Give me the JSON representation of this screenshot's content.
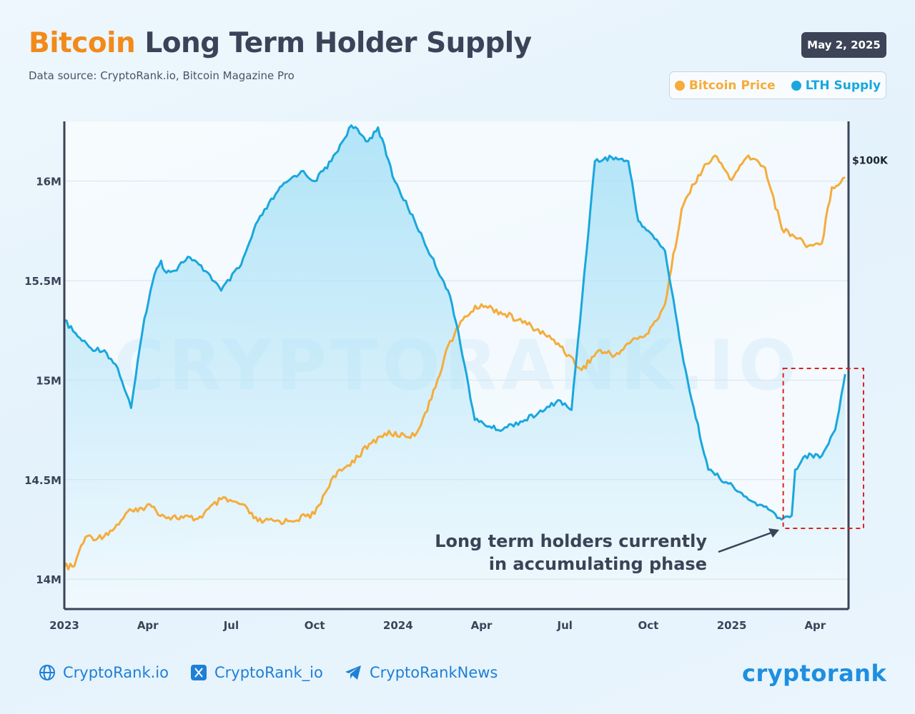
{
  "header": {
    "title_accent": "Bitcoin",
    "title_rest": " Long Term Holder Supply",
    "subtitle": "Data source: CryptoRank.io, Bitcoin Magazine Pro",
    "date": "May 2, 2025"
  },
  "legend": {
    "price_label": "Bitcoin Price",
    "lth_label": "LTH Supply"
  },
  "colors": {
    "price": "#f5ac3a",
    "lth": "#1aa7dd",
    "lth_fill": "#aee3f7",
    "annotation": "#3b4358",
    "highlight": "#e02020",
    "axis": "#3b4358",
    "grid": "#d9e3ec",
    "watermark": "#d8ecf8"
  },
  "chart_data": {
    "type": "line",
    "title": "Bitcoin Long Term Holder Supply",
    "x_ticks": [
      "2023",
      "Apr",
      "Jul",
      "Oct",
      "2024",
      "Apr",
      "Jul",
      "Oct",
      "2025",
      "Apr"
    ],
    "x_range": [
      "2023-01",
      "2025-05"
    ],
    "y_left": {
      "label": "LTH Supply",
      "ticks": [
        "14M",
        "14.5M",
        "15M",
        "15.5M",
        "16M"
      ],
      "tick_values": [
        14.0,
        14.5,
        15.0,
        15.5,
        16.0
      ],
      "range": [
        13.85,
        16.3
      ]
    },
    "y_right": {
      "label": "Bitcoin Price",
      "ticks": [
        "$100K"
      ],
      "tick_values": [
        100000
      ],
      "range": [
        8000,
        108000
      ]
    },
    "series": [
      {
        "name": "LTH Supply",
        "unit": "M BTC",
        "axis": "left",
        "t": [
          2023.0,
          2023.04,
          2023.08,
          2023.12,
          2023.16,
          2023.2,
          2023.24,
          2023.27,
          2023.29,
          2023.3,
          2023.33,
          2023.37,
          2023.43,
          2023.47,
          2023.53,
          2023.58,
          2023.64,
          2023.67,
          2023.71,
          2023.75,
          2023.8,
          2023.86,
          2023.91,
          2023.94,
          2023.99,
          2024.05,
          2024.1,
          2024.15,
          2024.18,
          2024.23,
          2024.3,
          2024.38,
          2024.44,
          2024.48,
          2024.52,
          2024.59,
          2024.64,
          2024.69,
          2024.72,
          2024.75,
          2024.8,
          2024.85,
          2024.88,
          2024.93,
          2024.99,
          2025.05,
          2025.11,
          2025.15,
          2025.18,
          2025.19,
          2025.22,
          2025.27,
          2025.31,
          2025.34
        ],
        "values": [
          15.3,
          15.22,
          15.16,
          15.15,
          15.06,
          14.86,
          15.31,
          15.53,
          15.6,
          15.55,
          15.55,
          15.62,
          15.54,
          15.45,
          15.58,
          15.8,
          15.95,
          16.0,
          16.05,
          16.0,
          16.1,
          16.28,
          16.2,
          16.27,
          16.0,
          15.8,
          15.62,
          15.45,
          15.25,
          14.8,
          14.75,
          14.8,
          14.85,
          14.9,
          14.85,
          16.1,
          16.12,
          16.1,
          15.8,
          15.75,
          15.65,
          15.15,
          14.9,
          14.55,
          14.48,
          14.4,
          14.35,
          14.3,
          14.32,
          14.55,
          14.62,
          14.62,
          14.75,
          15.03
        ]
      },
      {
        "name": "Bitcoin Price",
        "unit": "USD",
        "axis": "right",
        "t": [
          2023.0,
          2023.03,
          2023.05,
          2023.07,
          2023.1,
          2023.15,
          2023.19,
          2023.22,
          2023.25,
          2023.3,
          2023.4,
          2023.47,
          2023.53,
          2023.58,
          2023.67,
          2023.75,
          2023.8,
          2023.85,
          2023.92,
          2023.96,
          2024.05,
          2024.1,
          2024.15,
          2024.2,
          2024.25,
          2024.32,
          2024.4,
          2024.48,
          2024.55,
          2024.6,
          2024.65,
          2024.7,
          2024.75,
          2024.8,
          2024.85,
          2024.9,
          2024.95,
          2025.0,
          2025.05,
          2025.1,
          2025.15,
          2025.2,
          2025.23,
          2025.27,
          2025.3,
          2025.34
        ],
        "values": [
          16600,
          16800,
          21000,
          23000,
          22500,
          24500,
          28000,
          28000,
          29500,
          27000,
          26500,
          30500,
          29500,
          26000,
          26000,
          27500,
          34500,
          37500,
          42000,
          44000,
          43500,
          51000,
          62000,
          68000,
          70500,
          68500,
          66000,
          62500,
          57000,
          61000,
          60000,
          63000,
          64500,
          70500,
          90000,
          97000,
          101000,
          96000,
          101000,
          98500,
          86000,
          84000,
          82500,
          83000,
          94500,
          96500
        ]
      }
    ],
    "annotation": "Long term holders currently\nin accumulating phase",
    "annotation_lines": [
      "Long term holders currently",
      "in accumulating phase"
    ],
    "highlight": "dashed red box around the most recent LTH rise (Mar 2025 to May 2025)",
    "watermark": "CRYPTORANK.IO"
  },
  "footer": {
    "website": "CryptoRank.io",
    "twitter": "CryptoRank_io",
    "telegram": "CryptoRankNews",
    "brand": "cryptorank"
  }
}
